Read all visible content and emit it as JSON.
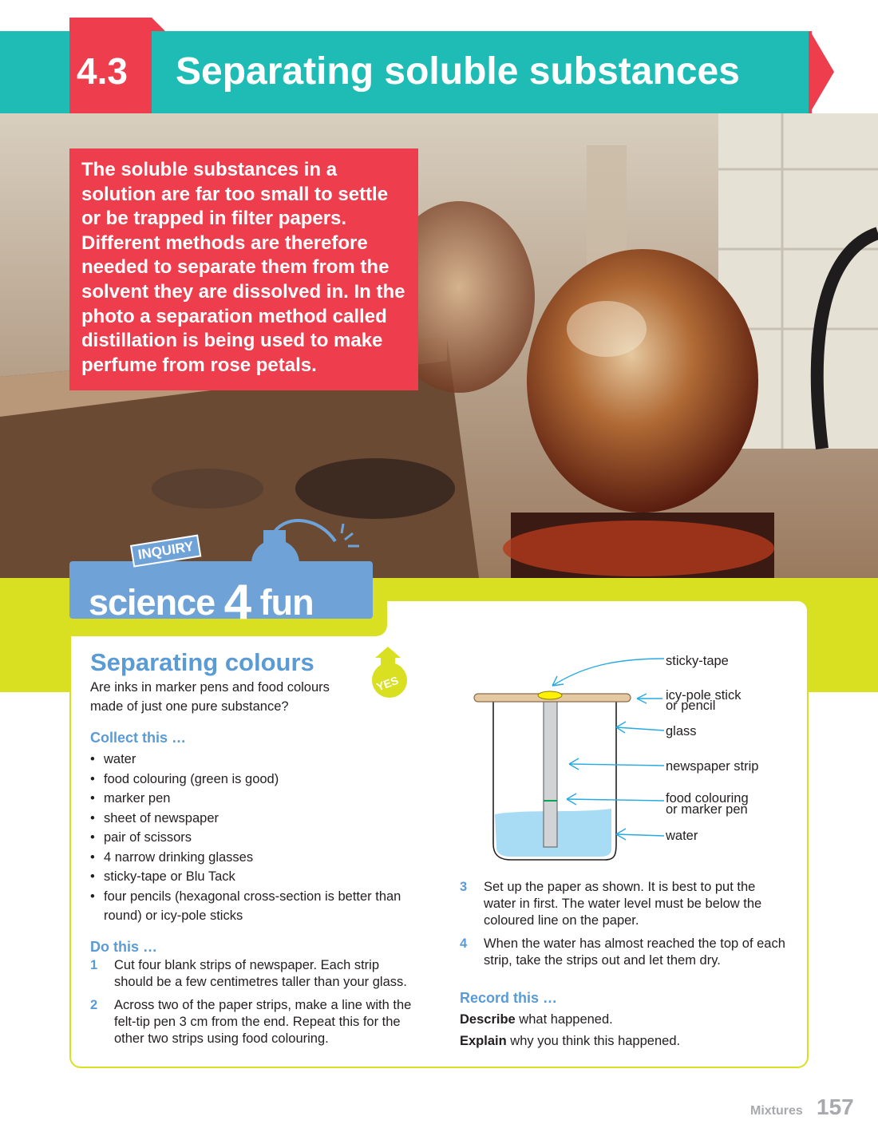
{
  "header": {
    "section_number": "4.3",
    "title": "Separating soluble substances"
  },
  "intro": {
    "text": "The soluble substances in a solution are far too small to settle or be trapped in filter papers. Different methods are therefore needed to separate them from the solvent they are dissolved in. In the photo a separation method called distillation is being used to make perfume from rose petals."
  },
  "logo": {
    "tag": "INQUIRY",
    "word1": "science",
    "digit": "4",
    "word2": "fun",
    "badge": "YES"
  },
  "activity": {
    "title": "Separating colours",
    "question": "Are inks in marker pens and food colours made of just one pure substance?",
    "collect_heading": "Collect this …",
    "collect_items": [
      "water",
      "food colouring (green is good)",
      "marker pen",
      "sheet of newspaper",
      "pair of scissors",
      "4 narrow drinking glasses",
      "sticky-tape or Blu Tack",
      "four pencils (hexagonal cross-section is better than round) or icy-pole sticks"
    ],
    "do_heading": "Do this …",
    "steps": [
      {
        "num": "1",
        "text": "Cut four blank strips of newspaper. Each strip should be a few centimetres taller than your glass."
      },
      {
        "num": "2",
        "text": "Across two of the paper strips, make a line with the felt-tip pen 3 cm from the end. Repeat this for the other two strips using food colouring."
      },
      {
        "num": "3",
        "text": "Set up the paper as shown. It is best to put the water in first. The water level must be below the coloured line on the paper."
      },
      {
        "num": "4",
        "text": "When the water has almost reached the top of each strip, take the strips out and let them dry."
      }
    ],
    "record_heading": "Record this …",
    "record": [
      {
        "verb": "Describe",
        "rest": " what happened."
      },
      {
        "verb": "Explain",
        "rest": " why you think this happened."
      }
    ]
  },
  "diagram": {
    "labels": {
      "tape": "sticky-tape",
      "stick_1": "icy-pole stick",
      "stick_2": "or pencil",
      "glass": "glass",
      "strip": "newspaper strip",
      "colour_1": "food colouring",
      "colour_2": "or marker pen",
      "water": "water"
    }
  },
  "footer": {
    "label": "Mixtures",
    "page": "157"
  },
  "colors": {
    "teal": "#1fbcb6",
    "red": "#ee3d4c",
    "lime": "#d9e021",
    "blue": "#5b9bd5"
  }
}
